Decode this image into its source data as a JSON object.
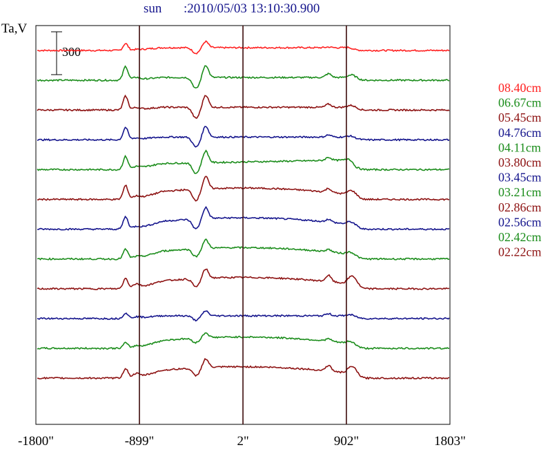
{
  "header": {
    "source": "sun",
    "datetime": ":2010/05/03 13:10:30.900"
  },
  "colors": {
    "red": "#ff2020",
    "green": "#1a8c1a",
    "maroon": "#8c1010",
    "navy": "#14148c",
    "axis": "#000000",
    "marker": "#3c0a0a"
  },
  "chart_data": {
    "type": "line",
    "ylabel": "Ta,V",
    "scale_bar_label": "300",
    "x_ticks": [
      "-1800\"",
      "-899\"",
      "2\"",
      "902\"",
      "1803\""
    ],
    "xlim": [
      -1800,
      1803
    ],
    "vertical_markers": [
      -899,
      2,
      902
    ],
    "grid": false,
    "legend_position": "right",
    "series": [
      {
        "name": "08.40cm",
        "color": "#ff2020",
        "style": "flat",
        "peak": 0.5,
        "limb": 0.1
      },
      {
        "name": "06.67cm",
        "color": "#1a8c1a",
        "style": "flat",
        "peak": 1.0,
        "limb": 0.55
      },
      {
        "name": "05.45cm",
        "color": "#8c1010",
        "style": "flat",
        "peak": 1.0,
        "limb": 0.45
      },
      {
        "name": "04.76cm",
        "color": "#14148c",
        "style": "flat",
        "peak": 0.9,
        "limb": 0.3
      },
      {
        "name": "04.11cm",
        "color": "#1a8c1a",
        "style": "slope",
        "peak": 0.95,
        "limb": 0.45
      },
      {
        "name": "03.80cm",
        "color": "#8c1010",
        "style": "dome",
        "peak": 1.0,
        "limb": 0.55
      },
      {
        "name": "03.45cm",
        "color": "#14148c",
        "style": "dome",
        "peak": 0.9,
        "limb": 0.4
      },
      {
        "name": "03.21cm",
        "color": "#1a8c1a",
        "style": "dome",
        "peak": 0.7,
        "limb": 0.35
      },
      {
        "name": "02.86cm",
        "color": "#8c1010",
        "style": "dome",
        "peak": 0.75,
        "limb": 0.9
      },
      {
        "name": "02.56cm",
        "color": "#14148c",
        "style": "flat",
        "peak": 0.4,
        "limb": 0.3
      },
      {
        "name": "02.42cm",
        "color": "#1a8c1a",
        "style": "dome",
        "peak": 0.4,
        "limb": 0.35
      },
      {
        "name": "02.22cm",
        "color": "#8c1010",
        "style": "dome",
        "peak": 0.7,
        "limb": 0.8
      }
    ]
  }
}
